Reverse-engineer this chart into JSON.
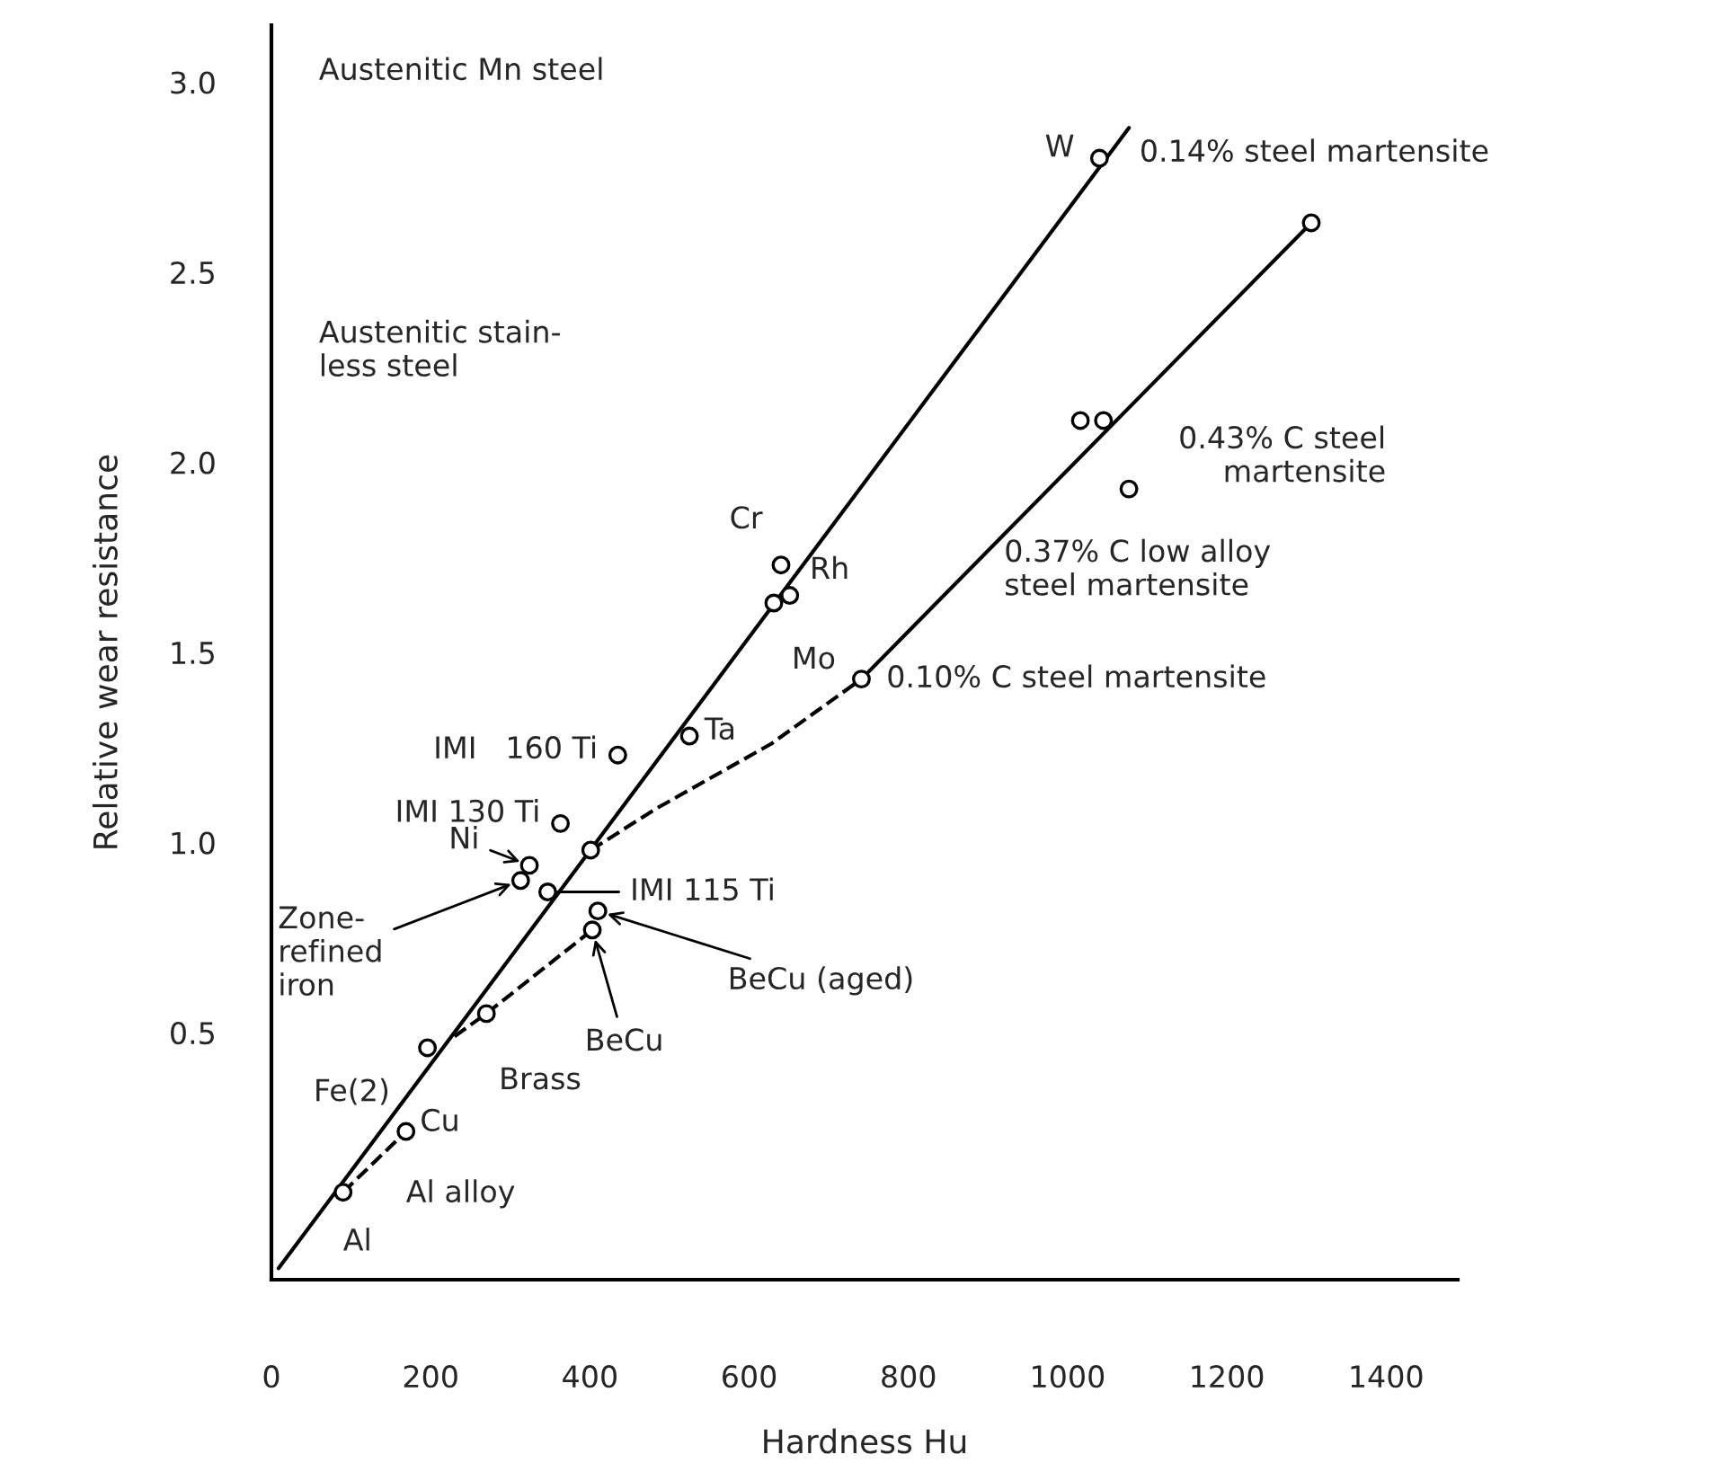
{
  "chart_data": {
    "type": "scatter",
    "xlabel": "Hardness Hu",
    "ylabel": "Relative wear resistance",
    "xlim": [
      0,
      1490
    ],
    "ylim": [
      -0.15,
      3.15
    ],
    "xticks": [
      0,
      200,
      400,
      600,
      800,
      1000,
      1200,
      1400
    ],
    "yticks": [
      0.5,
      {
        "value": 1,
        "label": "1.0"
      },
      1.5,
      {
        "value": 2,
        "label": "2.0"
      },
      2.5,
      {
        "value": 3,
        "label": "3.0"
      }
    ],
    "grid": false,
    "series": [
      {
        "type": "line",
        "color": "#000000",
        "line_style": "solid",
        "marker": "none",
        "x": [
          9,
          1077
        ],
        "values": [
          -0.12,
          2.88
        ]
      },
      {
        "type": "line",
        "color": "#000000",
        "line_style": "solid",
        "marker": "none",
        "x": [
          741,
          1306
        ],
        "values": [
          1.43,
          2.63
        ]
      },
      {
        "type": "line",
        "color": "#000000",
        "line_style": "dashed",
        "marker": "none",
        "x": [
          401,
          484,
          628,
          741
        ],
        "values": [
          0.98,
          1.09,
          1.26,
          1.43
        ]
      },
      {
        "type": "line",
        "color": "#000000",
        "line_style": "dashed",
        "marker": "none",
        "x": [
          230,
          270,
          403
        ],
        "values": [
          0.49,
          0.55,
          0.77
        ]
      },
      {
        "type": "line",
        "color": "#000000",
        "line_style": "dashed",
        "marker": "none",
        "x": [
          90,
          169
        ],
        "values": [
          0.08,
          0.24
        ]
      },
      {
        "color": "#000000",
        "marker": "circle",
        "x": [
          90,
          169,
          196,
          270,
          403,
          410,
          347,
          313,
          324,
          401,
          363,
          435,
          525,
          631,
          640,
          651,
          741,
          1040,
          1306,
          1016,
          1045,
          1077
        ],
        "values": [
          0.08,
          0.24,
          0.46,
          0.55,
          0.77,
          0.82,
          0.87,
          0.9,
          0.94,
          0.98,
          1.05,
          1.23,
          1.28,
          1.63,
          1.73,
          1.65,
          1.43,
          2.8,
          2.63,
          2.11,
          2.11,
          1.93
        ]
      }
    ],
    "annotations": [
      "Austenitic Mn steel",
      "Austenitic stain-\nless steel",
      {
        "text": "W",
        "x": 1040,
        "y": 2.8
      },
      {
        "text": "0.14% steel martensite",
        "x": 1040,
        "y": 2.8
      },
      {
        "text": "0.43% C steel\nmartensite",
        "x": 1045,
        "y": 2.11
      },
      {
        "text": "0.37% C low alloy\nsteel martensite",
        "x": 1077,
        "y": 1.93
      },
      {
        "text": "0.10% C steel martensite",
        "x": 741,
        "y": 1.43
      },
      {
        "text": "Cr",
        "x": 640,
        "y": 1.73
      },
      {
        "text": "Rh",
        "x": 651,
        "y": 1.65
      },
      {
        "text": "Mo",
        "x": 631,
        "y": 1.63
      },
      {
        "text": "Ta",
        "x": 525,
        "y": 1.28
      },
      {
        "text": "IMI   160 Ti",
        "x": 435,
        "y": 1.23
      },
      {
        "text": "IMI 130 Ti",
        "x": 363,
        "y": 1.05
      },
      {
        "text": "Ni",
        "x": 324,
        "y": 0.94
      },
      {
        "text": "Zone-\nrefined\niron",
        "x": 313,
        "y": 0.9
      },
      {
        "text": "IMI 115 Ti",
        "x": 347,
        "y": 0.87
      },
      {
        "text": "BeCu (aged)",
        "x": 410,
        "y": 0.82
      },
      {
        "text": "BeCu",
        "x": 403,
        "y": 0.77
      },
      {
        "text": "Brass",
        "x": 270,
        "y": 0.55
      },
      {
        "text": "Fe(2)",
        "x": 196,
        "y": 0.46
      },
      {
        "text": "Cu",
        "x": 196,
        "y": 0.46
      },
      {
        "text": "Al alloy",
        "x": 169,
        "y": 0.24
      },
      {
        "text": "Al",
        "x": 90,
        "y": 0.08
      }
    ]
  }
}
